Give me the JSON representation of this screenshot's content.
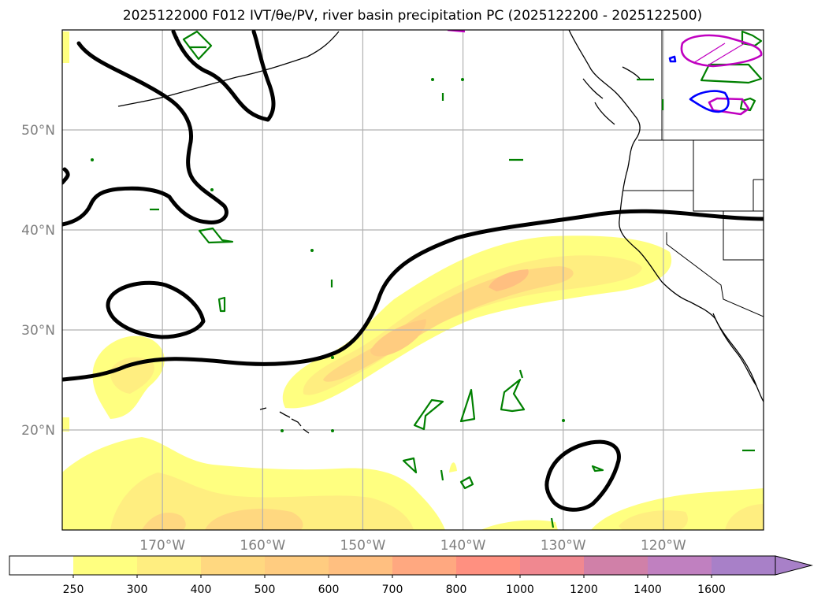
{
  "title": "2025122000 F012 IVT/θe/PV, river basin precipitation PC (2025122200 - 2025122500)",
  "map": {
    "projection": "PlateCarree",
    "extent": {
      "lon": [
        -180,
        -110
      ],
      "lat": [
        10,
        60
      ]
    },
    "lon_ticks": [
      {
        "value": -170,
        "label": "170°W"
      },
      {
        "value": -160,
        "label": "160°W"
      },
      {
        "value": -150,
        "label": "150°W"
      },
      {
        "value": -140,
        "label": "140°W"
      },
      {
        "value": -130,
        "label": "130°W"
      },
      {
        "value": -120,
        "label": "120°W"
      }
    ],
    "lat_ticks": [
      {
        "value": 20,
        "label": "20°N"
      },
      {
        "value": 30,
        "label": "30°N"
      },
      {
        "value": 40,
        "label": "40°N"
      },
      {
        "value": 50,
        "label": "50°N"
      }
    ],
    "gridlines": true,
    "colors": {
      "ivt_250": "#ffff80",
      "ivt_300": "#ffee80",
      "ivt_400": "#ffd880",
      "ivt_500": "#ffbf80",
      "pv_contour": "#000000",
      "theta_e_contour": "#008000",
      "basin_blue": "#0000ff",
      "basin_magenta": "#c000c0",
      "coastline": "#000000"
    }
  },
  "colorbar": {
    "levels": [
      "250",
      "300",
      "400",
      "500",
      "600",
      "700",
      "800",
      "1000",
      "1200",
      "1400",
      "1600"
    ],
    "colors": [
      "#ffffff",
      "#ffff80",
      "#ffee80",
      "#ffd880",
      "#ffcc80",
      "#ffbf80",
      "#ffa880",
      "#ff9080",
      "#f08890",
      "#d080a8",
      "#c080c0",
      "#a880c8"
    ],
    "extend": "max"
  }
}
